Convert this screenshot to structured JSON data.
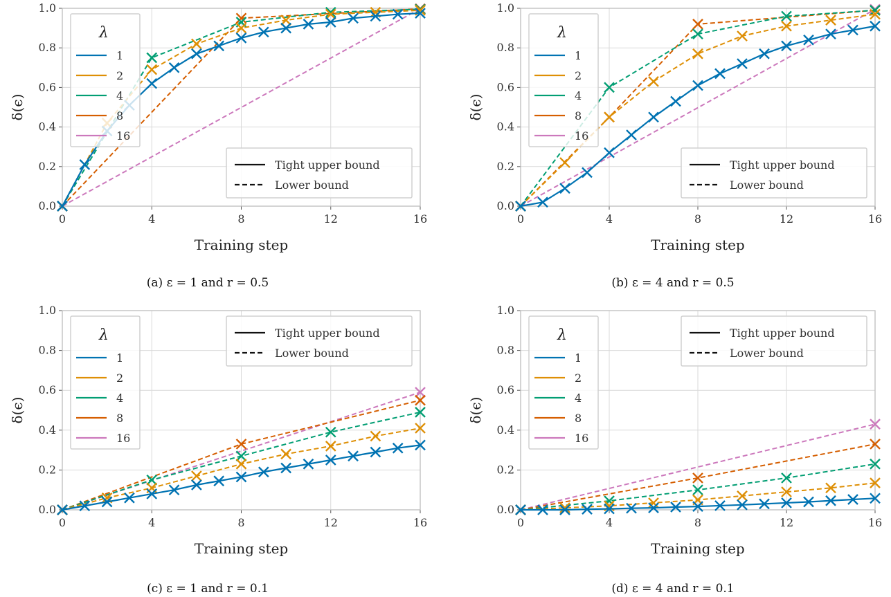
{
  "colors": {
    "lambda_1": "#0173b2",
    "lambda_2": "#de8f05",
    "lambda_4": "#029e73",
    "lambda_8": "#d55e00",
    "lambda_16": "#cc78bc",
    "grid": "#d9d9d9",
    "spine": "#bdbdbd",
    "legend_border": "#d0d0d0"
  },
  "legend_lambda": {
    "title": "λ",
    "entries": [
      "1",
      "2",
      "4",
      "8",
      "16"
    ]
  },
  "legend_style": {
    "entries": [
      "Tight upper bound",
      "Lower bound"
    ]
  },
  "axes_common": {
    "xlabel": "Training step",
    "ylabel": "δ(ϵ)",
    "xticks": [
      "0",
      "4",
      "8",
      "12",
      "16"
    ],
    "yticks": [
      "0.0",
      "0.2",
      "0.4",
      "0.6",
      "0.8",
      "1.0"
    ],
    "xlim": [
      0,
      16
    ],
    "ylim": [
      0,
      1
    ],
    "grid": true
  },
  "chart_data": [
    {
      "type": "line",
      "caption": "(a) ε = 1 and r = 0.5",
      "legend_lambda_position": "upper-left",
      "legend_style_position": "lower-right",
      "upper_bound": {
        "name": "1",
        "x": [
          0,
          1,
          2,
          3,
          4,
          5,
          6,
          7,
          8,
          9,
          10,
          11,
          12,
          13,
          14,
          15,
          16
        ],
        "y": [
          0,
          0.21,
          0.38,
          0.51,
          0.62,
          0.7,
          0.77,
          0.81,
          0.85,
          0.88,
          0.9,
          0.92,
          0.93,
          0.95,
          0.96,
          0.97,
          0.975
        ]
      },
      "series": [
        {
          "name": "2",
          "x": [
            0,
            2,
            4,
            6,
            8,
            10,
            12,
            14,
            16
          ],
          "y": [
            0,
            0.42,
            0.69,
            0.82,
            0.9,
            0.94,
            0.97,
            0.98,
            0.99
          ]
        },
        {
          "name": "4",
          "x": [
            0,
            4,
            8,
            12,
            16
          ],
          "y": [
            0,
            0.75,
            0.93,
            0.98,
            0.995
          ]
        },
        {
          "name": "8",
          "x": [
            0,
            8,
            16
          ],
          "y": [
            0,
            0.95,
            0.997
          ]
        },
        {
          "name": "16",
          "x": [
            0,
            16
          ],
          "y": [
            0,
            0.998
          ]
        }
      ]
    },
    {
      "type": "line",
      "caption": "(b) ε = 4 and r = 0.5",
      "legend_lambda_position": "upper-left",
      "legend_style_position": "lower-right",
      "upper_bound": {
        "name": "1",
        "x": [
          0,
          1,
          2,
          3,
          4,
          5,
          6,
          7,
          8,
          9,
          10,
          11,
          12,
          13,
          14,
          15,
          16
        ],
        "y": [
          0,
          0.02,
          0.09,
          0.17,
          0.27,
          0.36,
          0.45,
          0.53,
          0.61,
          0.67,
          0.72,
          0.77,
          0.81,
          0.84,
          0.87,
          0.89,
          0.91
        ]
      },
      "series": [
        {
          "name": "2",
          "x": [
            0,
            2,
            4,
            6,
            8,
            10,
            12,
            14,
            16
          ],
          "y": [
            0,
            0.22,
            0.45,
            0.63,
            0.77,
            0.86,
            0.91,
            0.94,
            0.97
          ]
        },
        {
          "name": "4",
          "x": [
            0,
            4,
            8,
            12,
            16
          ],
          "y": [
            0,
            0.6,
            0.87,
            0.96,
            0.99
          ]
        },
        {
          "name": "8",
          "x": [
            0,
            4,
            8,
            16
          ],
          "y": [
            0,
            0.45,
            0.92,
            0.99
          ]
        },
        {
          "name": "16",
          "x": [
            0,
            16
          ],
          "y": [
            0,
            0.995
          ]
        }
      ]
    },
    {
      "type": "line",
      "caption": "(c) ε = 1 and r = 0.1",
      "legend_lambda_position": "upper-left",
      "legend_style_position": "upper-right",
      "upper_bound": {
        "name": "1",
        "x": [
          0,
          1,
          2,
          3,
          4,
          5,
          6,
          7,
          8,
          9,
          10,
          11,
          12,
          13,
          14,
          15,
          16
        ],
        "y": [
          0,
          0.02,
          0.04,
          0.06,
          0.08,
          0.1,
          0.125,
          0.145,
          0.165,
          0.19,
          0.21,
          0.23,
          0.25,
          0.27,
          0.29,
          0.31,
          0.325
        ]
      },
      "series": [
        {
          "name": "2",
          "x": [
            0,
            2,
            4,
            6,
            8,
            10,
            12,
            14,
            16
          ],
          "y": [
            0,
            0.06,
            0.11,
            0.17,
            0.23,
            0.28,
            0.32,
            0.37,
            0.41
          ]
        },
        {
          "name": "4",
          "x": [
            0,
            4,
            8,
            12,
            16
          ],
          "y": [
            0,
            0.15,
            0.27,
            0.39,
            0.49
          ]
        },
        {
          "name": "8",
          "x": [
            0,
            8,
            16
          ],
          "y": [
            0,
            0.33,
            0.55
          ]
        },
        {
          "name": "16",
          "x": [
            0,
            16
          ],
          "y": [
            0,
            0.59
          ]
        }
      ]
    },
    {
      "type": "line",
      "caption": "(d) ε = 4 and r = 0.1",
      "legend_lambda_position": "upper-left",
      "legend_style_position": "upper-right",
      "upper_bound": {
        "name": "1",
        "x": [
          0,
          1,
          2,
          3,
          4,
          5,
          6,
          7,
          8,
          9,
          10,
          11,
          12,
          13,
          14,
          15,
          16
        ],
        "y": [
          0,
          0.0,
          0.0,
          0.003,
          0.005,
          0.008,
          0.01,
          0.014,
          0.017,
          0.021,
          0.025,
          0.03,
          0.035,
          0.04,
          0.046,
          0.052,
          0.058
        ]
      },
      "series": [
        {
          "name": "2",
          "x": [
            0,
            2,
            4,
            6,
            8,
            10,
            12,
            14,
            16
          ],
          "y": [
            0,
            0.01,
            0.02,
            0.035,
            0.05,
            0.07,
            0.09,
            0.11,
            0.135
          ]
        },
        {
          "name": "4",
          "x": [
            0,
            4,
            8,
            12,
            16
          ],
          "y": [
            0,
            0.045,
            0.1,
            0.16,
            0.23
          ]
        },
        {
          "name": "8",
          "x": [
            0,
            8,
            16
          ],
          "y": [
            0,
            0.16,
            0.33
          ]
        },
        {
          "name": "16",
          "x": [
            0,
            16
          ],
          "y": [
            0,
            0.43
          ]
        }
      ]
    }
  ]
}
